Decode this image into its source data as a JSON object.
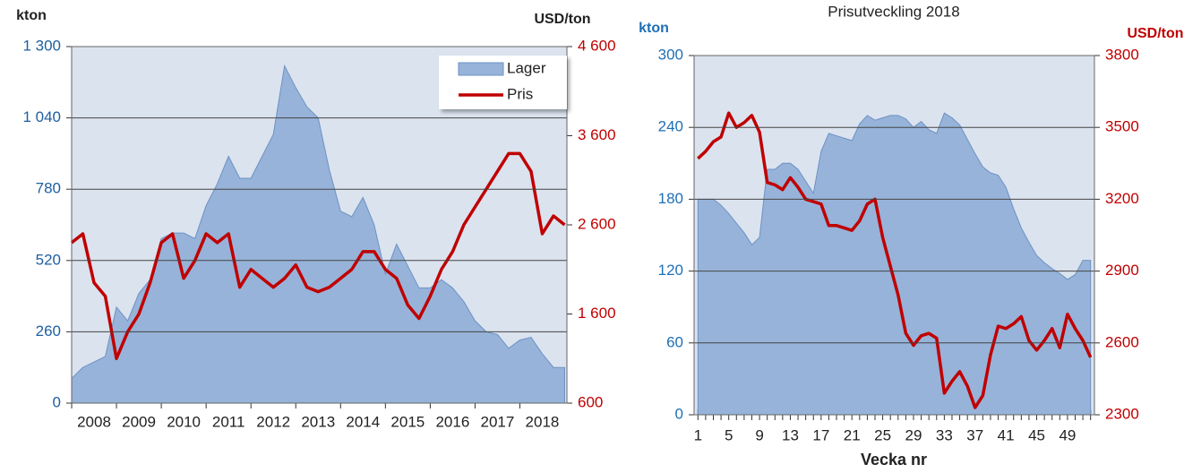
{
  "chart_data": [
    {
      "type": "area-line",
      "y_label": "kton",
      "y2_label": "USD/ton",
      "x": [
        2008.0,
        2008.25,
        2008.5,
        2008.75,
        2009.0,
        2009.25,
        2009.5,
        2009.75,
        2010.0,
        2010.25,
        2010.5,
        2010.75,
        2011.0,
        2011.25,
        2011.5,
        2011.75,
        2012.0,
        2012.25,
        2012.5,
        2012.75,
        2013.0,
        2013.25,
        2013.5,
        2013.75,
        2014.0,
        2014.25,
        2014.5,
        2014.75,
        2015.0,
        2015.25,
        2015.5,
        2015.75,
        2016.0,
        2016.25,
        2016.5,
        2016.75,
        2017.0,
        2017.25,
        2017.5,
        2017.75,
        2018.0,
        2018.25,
        2018.5,
        2018.75,
        2019.0
      ],
      "series": [
        {
          "name": "Lager",
          "color": "#97b3d9",
          "values": [
            90,
            130,
            150,
            170,
            350,
            300,
            400,
            450,
            600,
            620,
            620,
            600,
            720,
            800,
            900,
            820,
            820,
            900,
            980,
            1230,
            1150,
            1080,
            1040,
            850,
            700,
            680,
            750,
            650,
            470,
            580,
            500,
            420,
            420,
            450,
            420,
            370,
            300,
            260,
            250,
            200,
            230,
            240,
            180,
            130,
            130
          ]
        },
        {
          "name": "Pris",
          "color": "#c00000",
          "axis": "y2",
          "values": [
            2400,
            2500,
            1950,
            1800,
            1100,
            1400,
            1600,
            1950,
            2400,
            2500,
            2000,
            2200,
            2500,
            2400,
            2500,
            1900,
            2100,
            2000,
            1900,
            2000,
            2150,
            1900,
            1850,
            1900,
            2000,
            2100,
            2300,
            2300,
            2100,
            2000,
            1700,
            1550,
            1800,
            2100,
            2300,
            2600,
            2800,
            3000,
            3200,
            3400,
            3400,
            3200,
            2500,
            2700,
            2600
          ]
        }
      ],
      "xlim": [
        2008,
        2019.05
      ],
      "xticks": [
        {
          "value": 2008.5,
          "label": "2008"
        },
        {
          "value": 2009.5,
          "label": "2009"
        },
        {
          "value": 2010.5,
          "label": "2010"
        },
        {
          "value": 2011.5,
          "label": "2011"
        },
        {
          "value": 2012.5,
          "label": "2012"
        },
        {
          "value": 2013.5,
          "label": "2013"
        },
        {
          "value": 2014.5,
          "label": "2014"
        },
        {
          "value": 2015.5,
          "label": "2015"
        },
        {
          "value": 2016.5,
          "label": "2016"
        },
        {
          "value": 2017.5,
          "label": "2017"
        },
        {
          "value": 2018.5,
          "label": "2018"
        }
      ],
      "ylim": [
        0,
        1300
      ],
      "yticks": [
        0,
        260,
        520,
        780,
        {
          "value": 1040,
          "label": "1 040"
        },
        {
          "value": 1300,
          "label": "1 300"
        }
      ],
      "y2lim": [
        600,
        4600
      ],
      "y2ticks": [
        600,
        {
          "value": 1600,
          "label": "1 600"
        },
        {
          "value": 2600,
          "label": "2 600"
        },
        {
          "value": 3600,
          "label": "3 600"
        },
        {
          "value": 4600,
          "label": "4 600"
        }
      ],
      "grid": true,
      "legend": "upper right"
    },
    {
      "type": "area-line",
      "title": "Prisutveckling 2018",
      "y_label": "kton",
      "y2_label": "USD/ton",
      "x_label": "Vecka nr",
      "categories": [
        1,
        null,
        null,
        null,
        5,
        null,
        null,
        null,
        9,
        null,
        null,
        null,
        13,
        null,
        null,
        null,
        17,
        null,
        null,
        null,
        21,
        null,
        null,
        null,
        25,
        null,
        null,
        null,
        29,
        null,
        null,
        null,
        33,
        null,
        null,
        null,
        37,
        null,
        null,
        null,
        41,
        null,
        null,
        null,
        45,
        null,
        null,
        null,
        49,
        null,
        null,
        null
      ],
      "series": [
        {
          "color": "#97b3d9",
          "values": [
            180,
            180,
            180,
            175,
            168,
            160,
            152,
            142,
            148,
            205,
            205,
            210,
            210,
            205,
            195,
            185,
            220,
            235,
            233,
            231,
            229,
            243,
            250,
            246,
            248,
            250,
            250,
            247,
            240,
            245,
            238,
            235,
            252,
            248,
            242,
            230,
            218,
            207,
            202,
            200,
            190,
            172,
            156,
            144,
            133,
            127,
            122,
            118,
            113,
            117,
            129,
            129
          ]
        },
        {
          "color": "#c00000",
          "axis": "y2",
          "values": [
            3370,
            3400,
            3440,
            3460,
            3560,
            3500,
            3520,
            3550,
            3480,
            3270,
            3260,
            3240,
            3290,
            3250,
            3200,
            3190,
            3180,
            3090,
            3090,
            3080,
            3070,
            3110,
            3180,
            3200,
            3040,
            2920,
            2800,
            2640,
            2590,
            2630,
            2640,
            2620,
            2390,
            2440,
            2480,
            2420,
            2330,
            2380,
            2550,
            2670,
            2660,
            2680,
            2710,
            2610,
            2570,
            2610,
            2660,
            2580,
            2720,
            2660,
            2610,
            2540
          ]
        }
      ],
      "ylim": [
        0,
        300
      ],
      "yticks": [
        0,
        60,
        120,
        180,
        240,
        300
      ],
      "y2lim": [
        2300,
        3800
      ],
      "y2ticks": [
        2300,
        2600,
        2900,
        3200,
        3500,
        3800
      ],
      "grid": true
    }
  ]
}
